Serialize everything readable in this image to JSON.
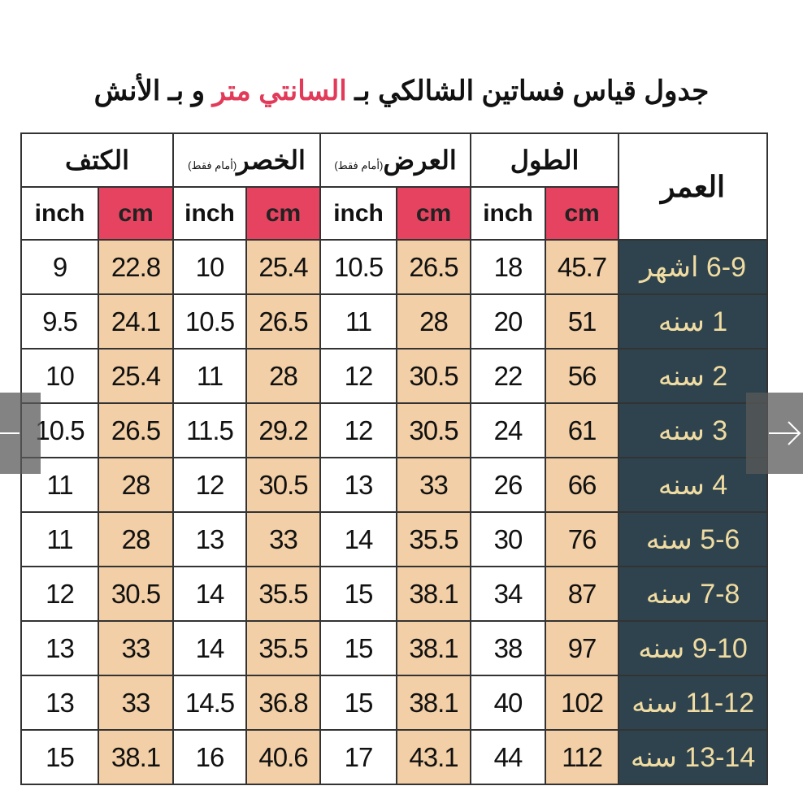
{
  "title": {
    "before": "جدول قياس فساتين الشالكي بـ",
    "highlight": "السانتي متر",
    "after": "و بـ الأنش"
  },
  "table": {
    "headers": [
      {
        "label": "العمر"
      },
      {
        "label": "الطول"
      },
      {
        "label": "العرض",
        "note": "(أمام فقط)"
      },
      {
        "label": "الخصر",
        "note": "(أمام فقط)"
      },
      {
        "label": "الكتف"
      }
    ],
    "subheaders": [
      "cm",
      "inch",
      "cm",
      "inch",
      "cm",
      "inch",
      "cm",
      "inch"
    ],
    "rows": [
      [
        "6-9 اشهر",
        45.7,
        18,
        26.5,
        10.5,
        25.4,
        10,
        22.8,
        9
      ],
      [
        "1 سنه",
        51,
        20,
        28,
        11,
        26.5,
        10.5,
        24.1,
        9.5
      ],
      [
        "2 سنه",
        56,
        22,
        30.5,
        12,
        28,
        11,
        25.4,
        10
      ],
      [
        "3 سنه",
        61,
        24,
        30.5,
        12,
        29.2,
        11.5,
        26.5,
        10.5
      ],
      [
        "4 سنه",
        66,
        26,
        33,
        13,
        30.5,
        12,
        28,
        11
      ],
      [
        "5-6 سنه",
        76,
        30,
        35.5,
        14,
        33,
        13,
        28,
        11
      ],
      [
        "7-8 سنه",
        87,
        34,
        38.1,
        15,
        35.5,
        14,
        30.5,
        12
      ],
      [
        "9-10 سنه",
        97,
        38,
        38.1,
        15,
        35.5,
        14,
        33,
        13
      ],
      [
        "11-12 سنه",
        102,
        40,
        38.1,
        15,
        36.8,
        14.5,
        33,
        13
      ],
      [
        "13-14 سنه",
        112,
        44,
        43.1,
        17,
        40.6,
        16,
        38.1,
        15
      ]
    ]
  }
}
